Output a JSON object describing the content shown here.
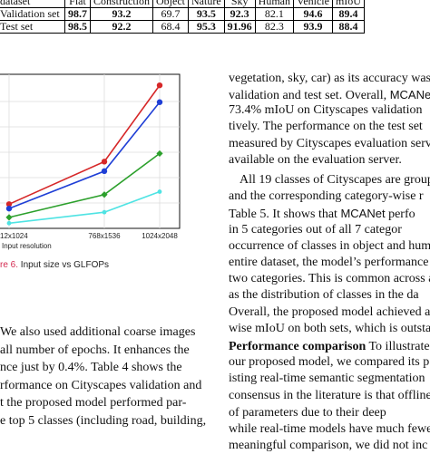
{
  "table": {
    "header": [
      "dataset",
      "Flat",
      "Construction",
      "Object",
      "Nature",
      "Sky",
      "Human",
      "Vehicle",
      "mIoU"
    ],
    "rows": [
      {
        "name": "Validation set",
        "values": [
          "98.7",
          "93.2",
          "69.7",
          "93.5",
          "92.3",
          "82.1",
          "94.6",
          "89.4"
        ],
        "bold": [
          true,
          true,
          false,
          true,
          true,
          false,
          true,
          true
        ]
      },
      {
        "name": "Test set",
        "values": [
          "98.5",
          "92.2",
          "68.4",
          "95.3",
          "91.96",
          "82.3",
          "93.9",
          "88.4"
        ],
        "bold": [
          true,
          true,
          false,
          true,
          true,
          false,
          true,
          true
        ]
      }
    ]
  },
  "chart_data": {
    "type": "line",
    "categories": [
      "12x1024",
      "768x1536",
      "1024x2048"
    ],
    "xlabel": "Input resolution",
    "series": [
      {
        "color": "#d62728",
        "values": [
          3.3,
          9.1,
          19.5
        ]
      },
      {
        "color": "#1f3fd6",
        "values": [
          2.7,
          7.8,
          17.2
        ]
      },
      {
        "color": "#2ca02c",
        "values": [
          1.5,
          4.6,
          10.2
        ]
      },
      {
        "color": "#4fe3e3",
        "values": [
          0.7,
          2.2,
          5.0
        ]
      }
    ]
  },
  "figure": {
    "label": "re 6.",
    "caption": "Input size vs GLFOPs"
  },
  "left_text": [
    "We also used additional coarse images",
    "all number of epochs. It enhances the",
    "nce just by 0.4%. Table 4 shows the",
    "rformance on Cityscapes validation and",
    "t the proposed model performed par-",
    "e top 5 classes (including road, building,"
  ],
  "right_text": [
    {
      "text": "vegetation, sky, car) as its accuracy was",
      "kind": "serif"
    },
    {
      "pre": "validation and test set. Overall, ",
      "sans": "MCANet",
      "post": "",
      "kind": "mixed"
    },
    {
      "text": "73.4% mIoU on Cityscapes validation",
      "kind": "serif"
    },
    {
      "text": "tively. The performance on the test set",
      "kind": "serif"
    },
    {
      "text": "measured by Cityscapes evaluation server",
      "kind": "serif"
    },
    {
      "text": "available on the evaluation server.",
      "kind": "serif"
    },
    {
      "text": "All 19 classes of Cityscapes are group",
      "kind": "serif",
      "indent": true
    },
    {
      "text": "and the corresponding category-wise r",
      "kind": "serif"
    },
    {
      "pre": "Table 5. It shows that ",
      "sans": "MCANet",
      "post": " perfo",
      "kind": "mixed"
    },
    {
      "text": "in 5 categories out of all 7 categor",
      "kind": "serif"
    },
    {
      "text": "occurrence of classes in object and hum",
      "kind": "serif"
    },
    {
      "text": "entire dataset, the model’s performance",
      "kind": "serif"
    },
    {
      "text": "two categories. This is common across a",
      "kind": "serif"
    },
    {
      "text": "as the distribution of classes in the da",
      "kind": "serif"
    },
    {
      "text": "Overall, the proposed model achieved a",
      "kind": "serif"
    },
    {
      "text": "wise mIoU on both sets, which is outsta",
      "kind": "serif"
    },
    {
      "bold": "Performance comparison",
      "post": " To illustrate",
      "kind": "boldlead"
    },
    {
      "text": "our proposed model, we compared its p",
      "kind": "serif"
    },
    {
      "text": "isting real-time semantic segmentation",
      "kind": "serif"
    },
    {
      "text": "consensus in the literature is that offline",
      "kind": "serif"
    },
    {
      "text": "of parameters due to their deep",
      "kind": "serif"
    },
    {
      "text": "while real-time models have much fewer",
      "kind": "serif"
    },
    {
      "text": "meaningful comparison, we did not inc",
      "kind": "serif"
    }
  ]
}
